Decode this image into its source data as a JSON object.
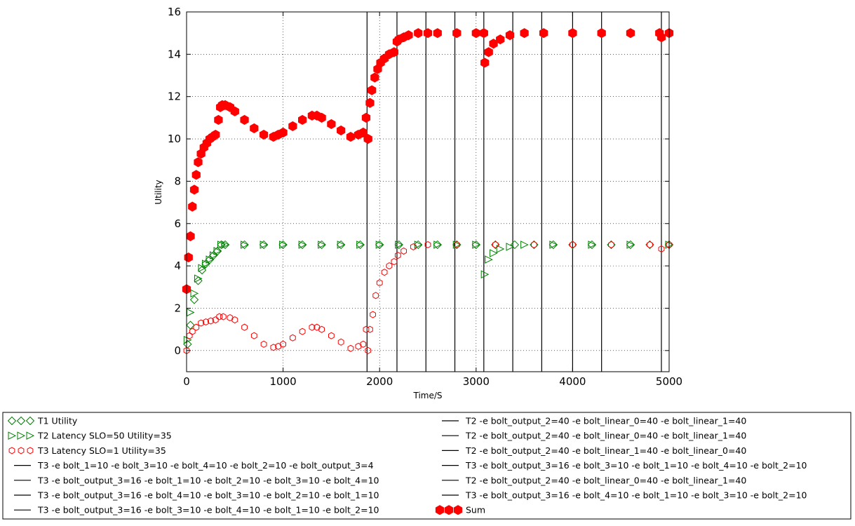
{
  "chart_data": {
    "type": "scatter",
    "title": "",
    "xlabel": "Time/S",
    "ylabel": "Utility",
    "xlim": [
      0,
      5000
    ],
    "ylim": [
      -1,
      16
    ],
    "xticks": [
      0,
      1000,
      2000,
      3000,
      4000,
      5000
    ],
    "yticks": [
      0,
      2,
      4,
      6,
      8,
      10,
      12,
      14,
      16
    ],
    "grid": true,
    "legend_position": "bottom",
    "vlines": [
      1870,
      2180,
      2480,
      2780,
      3080,
      3380,
      3680,
      4000,
      4300,
      4920
    ],
    "series": [
      {
        "name": "T1 Utility",
        "marker": "diamond",
        "color": "#008000",
        "filled": false,
        "x": [
          10,
          40,
          80,
          120,
          160,
          200,
          240,
          280,
          320,
          360,
          400,
          600,
          800,
          1000,
          1200,
          1400,
          1600,
          1800,
          2000,
          2200,
          2400,
          2600,
          2800,
          3000,
          3200,
          3400,
          3600,
          3800,
          4000,
          4200,
          4400,
          4600,
          4800,
          5000
        ],
        "values": [
          0.3,
          1.2,
          2.4,
          3.3,
          3.8,
          4.1,
          4.3,
          4.5,
          4.7,
          5.0,
          5.0,
          5.0,
          5.0,
          5.0,
          5.0,
          5.0,
          5.0,
          5.0,
          5.0,
          5.0,
          5.0,
          5.0,
          5.0,
          5.0,
          5.0,
          5.0,
          5.0,
          5.0,
          5.0,
          5.0,
          5.0,
          5.0,
          5.0,
          5.0
        ]
      },
      {
        "name": "T2 Latency SLO=50 Utility=35",
        "marker": "triangle-right",
        "color": "#008000",
        "filled": false,
        "x": [
          10,
          40,
          80,
          120,
          160,
          200,
          240,
          280,
          320,
          360,
          400,
          600,
          800,
          1000,
          1200,
          1400,
          1600,
          1800,
          2000,
          2200,
          2400,
          2600,
          2800,
          3000,
          3090,
          3130,
          3180,
          3250,
          3350,
          3500,
          3800,
          4200,
          4600,
          5000
        ],
        "values": [
          0.5,
          1.8,
          2.7,
          3.4,
          3.9,
          4.1,
          4.3,
          4.5,
          4.7,
          5.0,
          5.0,
          5.0,
          5.0,
          5.0,
          5.0,
          5.0,
          5.0,
          5.0,
          5.0,
          5.0,
          5.0,
          5.0,
          5.0,
          5.0,
          3.6,
          4.3,
          4.6,
          4.8,
          4.9,
          5.0,
          5.0,
          5.0,
          5.0,
          5.0
        ]
      },
      {
        "name": "T3 Latency SLO=1 Utility=35",
        "marker": "hexagon",
        "color": "#ff0000",
        "filled": false,
        "x": [
          0,
          30,
          60,
          100,
          150,
          200,
          250,
          300,
          340,
          380,
          450,
          500,
          600,
          700,
          800,
          900,
          950,
          1000,
          1100,
          1200,
          1300,
          1350,
          1400,
          1500,
          1600,
          1700,
          1780,
          1830,
          1860,
          1880,
          1900,
          1930,
          1960,
          2000,
          2050,
          2100,
          2150,
          2190,
          2250,
          2350,
          2500,
          2800,
          3200,
          3600,
          4000,
          4400,
          4800,
          4920,
          5000
        ],
        "values": [
          0.0,
          0.7,
          0.9,
          1.1,
          1.3,
          1.35,
          1.4,
          1.45,
          1.6,
          1.6,
          1.55,
          1.45,
          1.1,
          0.7,
          0.3,
          0.15,
          0.2,
          0.3,
          0.6,
          0.9,
          1.1,
          1.1,
          1.0,
          0.7,
          0.4,
          0.1,
          0.2,
          0.3,
          1.0,
          0.0,
          1.0,
          1.7,
          2.6,
          3.2,
          3.7,
          4.0,
          4.2,
          4.5,
          4.7,
          4.9,
          5.0,
          5.0,
          5.0,
          5.0,
          5.0,
          5.0,
          5.0,
          4.8,
          5.0
        ]
      },
      {
        "name": "T3 -e bolt_1=10 -e bolt_3=10 -e bolt_4=10 -e bolt_2=10 -e bolt_output_3=4",
        "marker": "line",
        "color": "#000000"
      },
      {
        "name": "T3 -e bolt_output_3=16 -e bolt_1=10 -e bolt_2=10 -e bolt_3=10 -e bolt_4=10",
        "marker": "line",
        "color": "#000000"
      },
      {
        "name": "T3 -e bolt_output_3=16 -e bolt_4=10 -e bolt_3=10 -e bolt_2=10 -e bolt_1=10",
        "marker": "line",
        "color": "#000000"
      },
      {
        "name": "T3 -e bolt_output_3=16 -e bolt_3=10 -e bolt_4=10 -e bolt_1=10 -e bolt_2=10",
        "marker": "line",
        "color": "#000000"
      },
      {
        "name": "T2 -e bolt_output_2=40 -e bolt_linear_0=40 -e bolt_linear_1=40",
        "marker": "line",
        "color": "#000000"
      },
      {
        "name": "T2 -e bolt_output_2=40 -e bolt_linear_0=40 -e bolt_linear_1=40",
        "marker": "line",
        "color": "#000000"
      },
      {
        "name": "T2 -e bolt_output_2=40 -e bolt_linear_1=40 -e bolt_linear_0=40",
        "marker": "line",
        "color": "#000000"
      },
      {
        "name": "T3 -e bolt_output_3=16 -e bolt_3=10 -e bolt_1=10 -e bolt_4=10 -e bolt_2=10",
        "marker": "line",
        "color": "#000000"
      },
      {
        "name": "T2 -e bolt_output_2=40 -e bolt_linear_0=40 -e bolt_linear_1=40",
        "marker": "line",
        "color": "#000000"
      },
      {
        "name": "T3 -e bolt_output_3=16 -e bolt_4=10 -e bolt_1=10 -e bolt_3=10 -e bolt_2=10",
        "marker": "line",
        "color": "#000000"
      },
      {
        "name": "Sum",
        "marker": "hexagon",
        "color": "#ff0000",
        "filled": true,
        "x": [
          0,
          20,
          40,
          60,
          80,
          100,
          120,
          150,
          180,
          210,
          240,
          270,
          300,
          330,
          350,
          370,
          400,
          450,
          500,
          600,
          700,
          800,
          900,
          950,
          1000,
          1100,
          1200,
          1300,
          1350,
          1400,
          1500,
          1600,
          1700,
          1780,
          1830,
          1860,
          1880,
          1900,
          1920,
          1950,
          1980,
          2010,
          2050,
          2100,
          2150,
          2180,
          2200,
          2250,
          2300,
          2400,
          2500,
          2600,
          2800,
          3000,
          3080,
          3090,
          3130,
          3180,
          3250,
          3350,
          3500,
          3700,
          4000,
          4300,
          4600,
          4900,
          4920,
          5000
        ],
        "values": [
          2.9,
          4.4,
          5.4,
          6.8,
          7.6,
          8.3,
          8.9,
          9.3,
          9.6,
          9.8,
          10.0,
          10.1,
          10.2,
          10.9,
          11.5,
          11.6,
          11.6,
          11.5,
          11.3,
          10.9,
          10.5,
          10.2,
          10.1,
          10.2,
          10.3,
          10.6,
          10.9,
          11.1,
          11.1,
          11.0,
          10.7,
          10.4,
          10.1,
          10.2,
          10.3,
          11.0,
          10.0,
          11.7,
          12.3,
          12.9,
          13.3,
          13.6,
          13.8,
          14.0,
          14.1,
          14.6,
          14.7,
          14.8,
          14.9,
          15.0,
          15.0,
          15.0,
          15.0,
          15.0,
          15.0,
          13.6,
          14.1,
          14.5,
          14.7,
          14.9,
          15.0,
          15.0,
          15.0,
          15.0,
          15.0,
          15.0,
          14.8,
          15.0
        ]
      }
    ]
  }
}
